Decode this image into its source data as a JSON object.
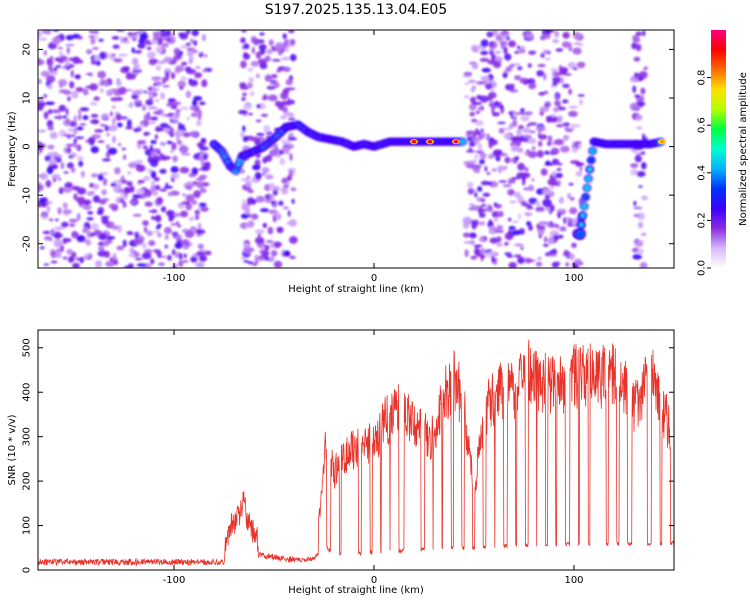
{
  "title": "S197.2025.135.13.04.E05",
  "chart_data": [
    {
      "type": "heatmap",
      "xlabel": "Height of straight line (km)",
      "ylabel": "Frequency (Hz)",
      "xlim": [
        -168,
        150
      ],
      "ylim": [
        -25,
        24
      ],
      "xticks": [
        -100,
        0,
        100
      ],
      "yticks": [
        -20,
        -10,
        0,
        10,
        20
      ],
      "colorbar": {
        "label": "Normalized spectral amplitude",
        "range": [
          0.0,
          1.0
        ],
        "ticks": [
          0.0,
          0.2,
          0.4,
          0.6,
          0.8
        ],
        "tick_labels": [
          "0.0",
          "0.2",
          "0.4",
          "0.6",
          "0.8"
        ],
        "colormap": [
          "#ffffff",
          "#d9b8ff",
          "#8a2be2",
          "#3b00ff",
          "#0033ff",
          "#00b4ff",
          "#00ffd0",
          "#00ff40",
          "#b4ff00",
          "#ffe000",
          "#ff6a00",
          "#ff0000",
          "#ff0080"
        ]
      },
      "noise_regions_km": [
        [
          -168,
          -83
        ],
        [
          -66,
          -40
        ],
        [
          46,
          80
        ],
        [
          82,
          104
        ],
        [
          130,
          136
        ]
      ],
      "empty_regions_km": [
        [
          -80,
          -67
        ],
        [
          -39,
          45
        ],
        [
          106,
          129
        ],
        [
          137,
          150
        ]
      ],
      "signal_track": [
        {
          "x": -80,
          "y": 0.5
        },
        {
          "x": -76,
          "y": -1
        },
        {
          "x": -72,
          "y": -4
        },
        {
          "x": -69,
          "y": -5
        },
        {
          "x": -66,
          "y": -2
        },
        {
          "x": -60,
          "y": -1
        },
        {
          "x": -55,
          "y": 0
        },
        {
          "x": -49,
          "y": 2
        },
        {
          "x": -44,
          "y": 4
        },
        {
          "x": -38,
          "y": 4.5
        },
        {
          "x": -33,
          "y": 3
        },
        {
          "x": -28,
          "y": 2
        },
        {
          "x": -22,
          "y": 1.5
        },
        {
          "x": -16,
          "y": 1
        },
        {
          "x": -10,
          "y": 0
        },
        {
          "x": -5,
          "y": 0.5
        },
        {
          "x": 0,
          "y": 0
        },
        {
          "x": 8,
          "y": 1
        },
        {
          "x": 15,
          "y": 1
        },
        {
          "x": 22,
          "y": 1
        },
        {
          "x": 30,
          "y": 1
        },
        {
          "x": 38,
          "y": 1
        },
        {
          "x": 45,
          "y": 1
        },
        {
          "x": 103,
          "y": -18
        },
        {
          "x": 110,
          "y": 1
        },
        {
          "x": 116,
          "y": 0.5
        },
        {
          "x": 122,
          "y": 0.5
        },
        {
          "x": 128,
          "y": 0.5
        },
        {
          "x": 138,
          "y": 0.5
        },
        {
          "x": 144,
          "y": 1
        }
      ],
      "peak_spots": [
        {
          "x": 20,
          "y": 1,
          "amp": 0.92
        },
        {
          "x": 28,
          "y": 1,
          "amp": 0.95
        },
        {
          "x": 41,
          "y": 1,
          "amp": 0.98
        },
        {
          "x": 144,
          "y": 1,
          "amp": 0.8
        }
      ]
    },
    {
      "type": "line",
      "xlabel": "Height of straight line (km)",
      "ylabel": "SNR (10 * v/v)",
      "xlim": [
        -168,
        150
      ],
      "ylim": [
        0,
        540
      ],
      "xticks": [
        -100,
        0,
        100
      ],
      "yticks": [
        0,
        100,
        200,
        300,
        400,
        500
      ],
      "color": "#e8332a",
      "baseline": [
        {
          "x": -168,
          "y": 18
        },
        {
          "x": -75,
          "y": 18
        },
        {
          "x": -72,
          "y": 60
        },
        {
          "x": -68,
          "y": 90
        },
        {
          "x": -65,
          "y": 120
        },
        {
          "x": -62,
          "y": 70
        },
        {
          "x": -58,
          "y": 35
        },
        {
          "x": -40,
          "y": 22
        },
        {
          "x": -30,
          "y": 25
        },
        {
          "x": -25,
          "y": 55
        },
        {
          "x": -20,
          "y": 35
        },
        {
          "x": 0,
          "y": 40
        },
        {
          "x": 40,
          "y": 50
        },
        {
          "x": 80,
          "y": 55
        },
        {
          "x": 100,
          "y": 60
        },
        {
          "x": 150,
          "y": 60
        }
      ],
      "envelope": [
        {
          "x": -27,
          "y": 150
        },
        {
          "x": -24,
          "y": 330
        },
        {
          "x": -20,
          "y": 250
        },
        {
          "x": -15,
          "y": 300
        },
        {
          "x": -10,
          "y": 310
        },
        {
          "x": -5,
          "y": 320
        },
        {
          "x": 0,
          "y": 330
        },
        {
          "x": 5,
          "y": 380
        },
        {
          "x": 12,
          "y": 420
        },
        {
          "x": 20,
          "y": 380
        },
        {
          "x": 25,
          "y": 370
        },
        {
          "x": 28,
          "y": 320
        },
        {
          "x": 33,
          "y": 420
        },
        {
          "x": 40,
          "y": 500
        },
        {
          "x": 45,
          "y": 420
        },
        {
          "x": 50,
          "y": 210
        },
        {
          "x": 55,
          "y": 400
        },
        {
          "x": 60,
          "y": 450
        },
        {
          "x": 65,
          "y": 470
        },
        {
          "x": 70,
          "y": 460
        },
        {
          "x": 75,
          "y": 520
        },
        {
          "x": 80,
          "y": 500
        },
        {
          "x": 88,
          "y": 480
        },
        {
          "x": 95,
          "y": 470
        },
        {
          "x": 100,
          "y": 500
        },
        {
          "x": 105,
          "y": 510
        },
        {
          "x": 112,
          "y": 500
        },
        {
          "x": 118,
          "y": 510
        },
        {
          "x": 125,
          "y": 490
        },
        {
          "x": 130,
          "y": 420
        },
        {
          "x": 135,
          "y": 470
        },
        {
          "x": 140,
          "y": 490
        },
        {
          "x": 144,
          "y": 420
        },
        {
          "x": 147,
          "y": 380
        },
        {
          "x": 150,
          "y": 340
        }
      ],
      "spike_start_km": -26,
      "spike_end_km": 150,
      "spike_count": 34
    }
  ]
}
